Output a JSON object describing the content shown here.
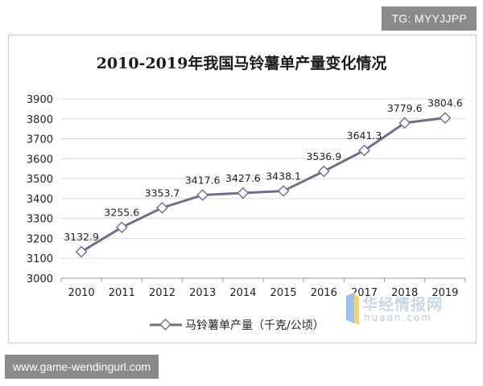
{
  "watermarks": {
    "top": "TG: MYYJJPP",
    "bottom": "www.game-wendingurl.com"
  },
  "logo": {
    "cn": "华经情报网",
    "en": "huaon.com"
  },
  "chart_data": {
    "type": "line",
    "title": "2010-2019年我国马铃薯单产量变化情况",
    "categories": [
      "2010",
      "2011",
      "2012",
      "2013",
      "2014",
      "2015",
      "2016",
      "2017",
      "2018",
      "2019"
    ],
    "series": [
      {
        "name": "马铃薯单产量（千克/公顷）",
        "values": [
          3132.9,
          3255.6,
          3353.7,
          3417.6,
          3427.6,
          3438.1,
          3536.9,
          3641.3,
          3779.6,
          3804.6
        ],
        "labels": [
          "3132.9",
          "3255.6",
          "3353.7",
          "3417.6",
          "3427.6",
          "3438.1",
          "3536.9",
          "3641.3",
          "3779.6",
          "3804.6"
        ],
        "color": "#6e6f8c"
      }
    ],
    "ylim": [
      3000,
      3900
    ],
    "yticks": [
      "3000",
      "3100",
      "3200",
      "3300",
      "3400",
      "3500",
      "3600",
      "3700",
      "3800",
      "3900"
    ],
    "grid": true,
    "legend": "bottom",
    "xlabel": "",
    "ylabel": ""
  }
}
